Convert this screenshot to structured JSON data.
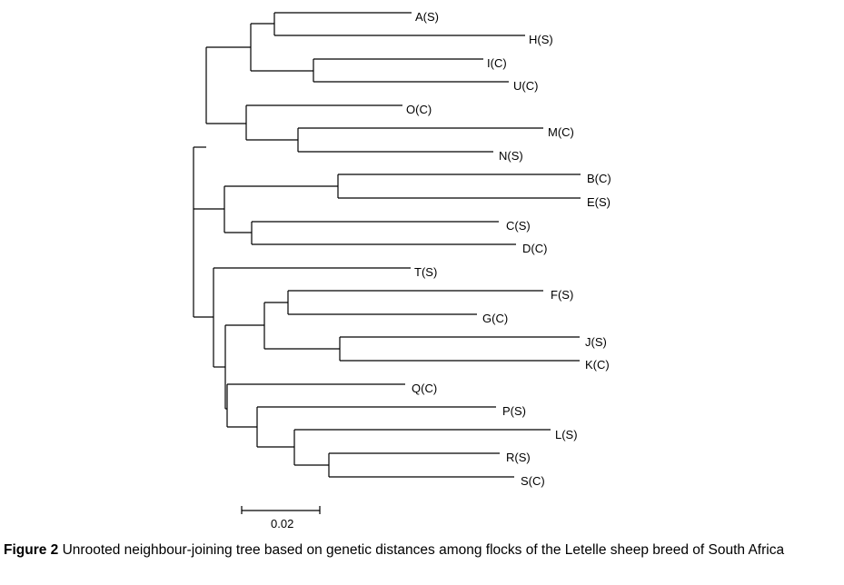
{
  "tree": {
    "type": "unrooted neighbour-joining tree",
    "leaves": [
      "A(S)",
      "H(S)",
      "I(C)",
      "U(C)",
      "O(C)",
      "M(C)",
      "N(S)",
      "B(C)",
      "E(S)",
      "C(S)",
      "D(C)",
      "T(S)",
      "F(S)",
      "G(C)",
      "J(S)",
      "K(C)",
      "Q(C)",
      "P(S)",
      "L(S)",
      "R(S)",
      "S(C)"
    ],
    "scale_bar": {
      "value": 0.02,
      "label": "0.02"
    },
    "newick": "((((A(S),H(S)),(I(C),U(C))),(O(C),(M(C),N(S)))),((B(C),E(S)),(C(S),D(C))),(T(S),(((F(S),G(C)),(J(S),K(C))),(Q(C),(P(S),(L(S),(R(S),S(C))))))));"
  },
  "caption": {
    "label": "Figure 2",
    "text": " Unrooted neighbour-joining tree based on genetic distances among flocks of the Letelle sheep breed of South Africa"
  }
}
